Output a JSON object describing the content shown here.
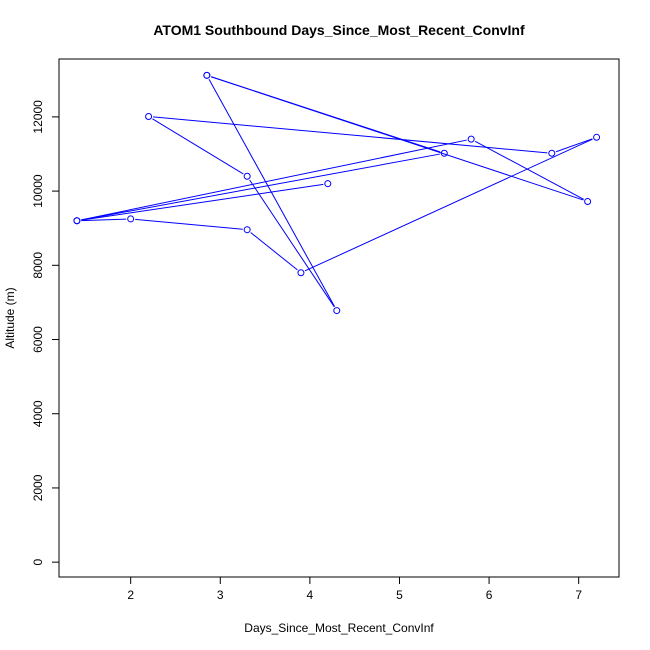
{
  "chart_data": {
    "type": "line",
    "title": "ATOM1 Southbound Days_Since_Most_Recent_ConvInf",
    "xlabel": "Days_Since_Most_Recent_ConvInf",
    "ylabel": "Altitude (m)",
    "xlim": [
      1.2,
      7.45
    ],
    "ylim": [
      -400,
      13560
    ],
    "x_ticks": [
      2,
      3,
      4,
      5,
      6,
      7
    ],
    "y_ticks": [
      0,
      2000,
      4000,
      6000,
      8000,
      10000,
      12000
    ],
    "series": [
      {
        "color": "#0000ff",
        "marker": "open-circle",
        "points": [
          {
            "x": 4.2,
            "y": 10200
          },
          {
            "x": 1.4,
            "y": 9200
          },
          {
            "x": 5.8,
            "y": 11400
          },
          {
            "x": 7.1,
            "y": 9720
          },
          {
            "x": 2.85,
            "y": 13120
          },
          {
            "x": 5.5,
            "y": 11020
          },
          {
            "x": 1.4,
            "y": 9200
          },
          {
            "x": 2.0,
            "y": 9250
          },
          {
            "x": 3.3,
            "y": 8960
          },
          {
            "x": 3.9,
            "y": 7800
          },
          {
            "x": 7.2,
            "y": 11450
          },
          {
            "x": 6.7,
            "y": 11020
          },
          {
            "x": 2.2,
            "y": 12010
          },
          {
            "x": 3.3,
            "y": 10400
          },
          {
            "x": 4.3,
            "y": 6780
          },
          {
            "x": 2.85,
            "y": 13120
          }
        ]
      }
    ]
  }
}
